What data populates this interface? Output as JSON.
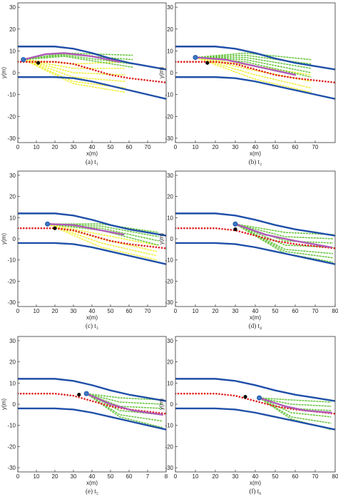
{
  "chart_data": [
    {
      "type": "line",
      "caption": "(a)  t₁",
      "xlabel": "x(m)",
      "ylabel": "y(m)",
      "xlim": [
        0,
        80
      ],
      "ylim": [
        -32,
        32
      ],
      "xticks": [
        0,
        10,
        20,
        30,
        40,
        50,
        60,
        70
      ],
      "yticks": [
        -30,
        -20,
        -10,
        0,
        10,
        20,
        30
      ],
      "series": [
        {
          "color": "#1f4fa8",
          "x": [
            0,
            10,
            20,
            30,
            40,
            50,
            60,
            70,
            80
          ],
          "values": [
            12,
            12,
            12,
            11,
            9,
            6.5,
            4.5,
            3,
            1.5
          ]
        },
        {
          "color": "#1f4fa8",
          "x": [
            0,
            10,
            20,
            30,
            40,
            50,
            60,
            70,
            80
          ],
          "values": [
            -2,
            -2,
            -2,
            -2.5,
            -4,
            -6,
            -8,
            -10,
            -12
          ]
        },
        {
          "color": "#e02020",
          "style": "dotted",
          "x": [
            0,
            10,
            20,
            30,
            40,
            50,
            60,
            70,
            80
          ],
          "values": [
            5,
            5,
            5,
            4,
            1.5,
            -1,
            -2.5,
            -3.5,
            -4.5
          ]
        },
        {
          "color": "#b05ab8",
          "x": [
            3,
            15,
            25,
            40,
            55
          ],
          "values": [
            6,
            8.5,
            9,
            7.5,
            5
          ]
        }
      ],
      "fans": [
        {
          "color": "#f0f040",
          "x": [
            3,
            30,
            58
          ],
          "lines": [
            [
              6,
              4,
              5
            ],
            [
              6,
              2,
              2
            ],
            [
              6,
              0,
              -1
            ],
            [
              6,
              -2,
              -4
            ],
            [
              6,
              -4,
              -7
            ],
            [
              6,
              -5,
              -9
            ]
          ]
        },
        {
          "color": "#6cc644",
          "x": [
            3,
            25,
            62
          ],
          "lines": [
            [
              6,
              9,
              8
            ],
            [
              6,
              8.5,
              6
            ],
            [
              6,
              8,
              4
            ],
            [
              6,
              7.5,
              2.5
            ]
          ]
        }
      ],
      "vehicle": [
        3,
        6
      ],
      "obstacle": [
        11,
        4.5
      ]
    },
    {
      "type": "line",
      "caption": "(b)  t₂",
      "xlabel": "x(m)",
      "ylabel": "y(m)",
      "xlim": [
        0,
        80
      ],
      "ylim": [
        -32,
        32
      ],
      "xticks": [
        0,
        10,
        20,
        30,
        40,
        50,
        60,
        70
      ],
      "yticks": [
        -30,
        -20,
        -10,
        0,
        10,
        20,
        30
      ],
      "series": [
        {
          "color": "#1f4fa8",
          "x": [
            0,
            10,
            20,
            30,
            40,
            50,
            60,
            70,
            80
          ],
          "values": [
            12,
            12,
            12,
            11,
            9,
            6.5,
            4.5,
            3,
            1.5
          ]
        },
        {
          "color": "#1f4fa8",
          "x": [
            0,
            10,
            20,
            30,
            40,
            50,
            60,
            70,
            80
          ],
          "values": [
            -2,
            -2,
            -2,
            -2.5,
            -4,
            -6,
            -8,
            -10,
            -12
          ]
        },
        {
          "color": "#e02020",
          "style": "dotted",
          "x": [
            0,
            10,
            20,
            30,
            40,
            50,
            60,
            70,
            80
          ],
          "values": [
            5,
            5,
            5,
            4,
            1.5,
            -1,
            -2.5,
            -3.5,
            -4.5
          ]
        },
        {
          "color": "#b05ab8",
          "x": [
            10,
            25,
            40,
            60
          ],
          "values": [
            7,
            6,
            3,
            -1
          ]
        }
      ],
      "fans": [
        {
          "color": "#f0f040",
          "x": [
            10,
            40,
            68
          ],
          "lines": [
            [
              7,
              3,
              -1
            ],
            [
              7,
              1,
              -4
            ],
            [
              7,
              -1,
              -7
            ],
            [
              7,
              -3,
              -9
            ]
          ]
        },
        {
          "color": "#6cc644",
          "x": [
            10,
            35,
            68
          ],
          "lines": [
            [
              7,
              9,
              6
            ],
            [
              7,
              8,
              4
            ],
            [
              7,
              7,
              2
            ],
            [
              7,
              6,
              0
            ],
            [
              7,
              5,
              -2
            ]
          ]
        }
      ],
      "vehicle": [
        10,
        7
      ],
      "obstacle": [
        16,
        4.5
      ]
    },
    {
      "type": "line",
      "caption": "(c)  t₃",
      "xlabel": "x(m)",
      "ylabel": "y(m)",
      "xlim": [
        0,
        80
      ],
      "ylim": [
        -32,
        32
      ],
      "xticks": [
        0,
        10,
        20,
        30,
        40,
        50,
        60,
        70
      ],
      "yticks": [
        -30,
        -20,
        -10,
        0,
        10,
        20,
        30
      ],
      "series": [
        {
          "color": "#1f4fa8",
          "x": [
            0,
            10,
            20,
            30,
            40,
            50,
            60,
            70,
            80
          ],
          "values": [
            12,
            12,
            12,
            11,
            9,
            6.5,
            4.5,
            3,
            1.5
          ]
        },
        {
          "color": "#1f4fa8",
          "x": [
            0,
            10,
            20,
            30,
            40,
            50,
            60,
            70,
            80
          ],
          "values": [
            -2,
            -2,
            -2,
            -2.5,
            -4,
            -6,
            -8,
            -10,
            -12
          ]
        },
        {
          "color": "#e02020",
          "style": "dotted",
          "x": [
            0,
            10,
            20,
            30,
            40,
            50,
            60,
            70,
            80
          ],
          "values": [
            5,
            5,
            5,
            4,
            1.5,
            -1,
            -2.5,
            -3.5,
            -4.5
          ]
        },
        {
          "color": "#b05ab8",
          "x": [
            16,
            30,
            45,
            57
          ],
          "values": [
            7,
            6.5,
            4,
            2
          ]
        }
      ],
      "fans": [
        {
          "color": "#f0f040",
          "x": [
            16,
            45,
            75
          ],
          "lines": [
            [
              7,
              2,
              -3
            ],
            [
              7,
              0,
              -6
            ],
            [
              7,
              -2,
              -8
            ],
            [
              7,
              -4,
              -10
            ]
          ]
        },
        {
          "color": "#6cc644",
          "x": [
            16,
            45,
            76
          ],
          "lines": [
            [
              7,
              7,
              3
            ],
            [
              7,
              6,
              1
            ],
            [
              7,
              5,
              -1
            ],
            [
              7,
              4,
              -3
            ]
          ]
        }
      ],
      "vehicle": [
        16,
        7
      ],
      "obstacle": [
        20,
        5
      ]
    },
    {
      "type": "line",
      "caption": "(d)  t₄",
      "xlabel": "x(m)",
      "ylabel": "y(m)",
      "xlim": [
        0,
        80
      ],
      "ylim": [
        -32,
        32
      ],
      "xticks": [
        0,
        10,
        20,
        30,
        40,
        50,
        60,
        70,
        80
      ],
      "yticks": [
        -30,
        -20,
        -10,
        0,
        10,
        20,
        30
      ],
      "series": [
        {
          "color": "#1f4fa8",
          "x": [
            0,
            10,
            20,
            30,
            40,
            50,
            60,
            70,
            80
          ],
          "values": [
            12,
            12,
            12,
            11,
            9,
            6.5,
            4.5,
            3,
            1.5
          ]
        },
        {
          "color": "#1f4fa8",
          "x": [
            0,
            10,
            20,
            30,
            40,
            50,
            60,
            70,
            80
          ],
          "values": [
            -2,
            -2,
            -2,
            -2.5,
            -4,
            -6,
            -8,
            -10,
            -12
          ]
        },
        {
          "color": "#e02020",
          "style": "dotted",
          "x": [
            0,
            10,
            20,
            30,
            40,
            50,
            60,
            70,
            80
          ],
          "values": [
            5,
            5,
            5,
            4,
            1.5,
            -1,
            -2.5,
            -3.5,
            -4.5
          ]
        },
        {
          "color": "#b05ab8",
          "x": [
            30,
            45,
            60,
            78
          ],
          "values": [
            7,
            2,
            -1,
            -4
          ]
        }
      ],
      "fans": [
        {
          "color": "#6cc644",
          "x": [
            30,
            55,
            79
          ],
          "lines": [
            [
              7,
              3,
              2
            ],
            [
              7,
              1,
              0
            ],
            [
              7,
              -1,
              -2
            ],
            [
              7,
              -3,
              -4
            ],
            [
              7,
              -5,
              -7
            ],
            [
              7,
              -6,
              -9
            ],
            [
              7,
              -7,
              -11
            ]
          ]
        }
      ],
      "vehicle": [
        30,
        7
      ],
      "obstacle": [
        30,
        4.5
      ]
    },
    {
      "type": "line",
      "caption": "(e)  t₅",
      "xlabel": "x(m)",
      "ylabel": "y(m)",
      "xlim": [
        0,
        80
      ],
      "ylim": [
        -32,
        32
      ],
      "xticks": [
        0,
        10,
        20,
        30,
        40,
        50,
        60,
        {
          "value": 70,
          "label": "7"
        },
        {
          "value": 80,
          "label": "8"
        }
      ],
      "yticks": [
        -30,
        -20,
        -10,
        0,
        10,
        20,
        30
      ],
      "series": [
        {
          "color": "#1f4fa8",
          "x": [
            0,
            10,
            20,
            30,
            40,
            50,
            60,
            70,
            80
          ],
          "values": [
            12,
            12,
            12,
            11,
            9,
            6.5,
            4.5,
            3,
            1.5
          ]
        },
        {
          "color": "#1f4fa8",
          "x": [
            0,
            10,
            20,
            30,
            40,
            50,
            60,
            70,
            80
          ],
          "values": [
            -2,
            -2,
            -2,
            -2.5,
            -4,
            -6,
            -8,
            -10,
            -12
          ]
        },
        {
          "color": "#e02020",
          "style": "dotted",
          "x": [
            0,
            10,
            20,
            30,
            40,
            50,
            60,
            70,
            80
          ],
          "values": [
            5,
            5,
            5,
            4,
            1.5,
            -1,
            -2.5,
            -3.5,
            -4.5
          ]
        },
        {
          "color": "#b05ab8",
          "x": [
            37,
            50,
            62,
            78
          ],
          "values": [
            5,
            0,
            -3,
            -5
          ]
        }
      ],
      "fans": [
        {
          "color": "#6cc644",
          "x": [
            37,
            55,
            78
          ],
          "lines": [
            [
              5,
              3,
              2
            ],
            [
              5,
              1,
              0
            ],
            [
              5,
              -1,
              -2
            ],
            [
              5,
              -3,
              -5
            ],
            [
              5,
              -5,
              -8
            ],
            [
              5,
              -6,
              -11
            ]
          ]
        }
      ],
      "vehicle": [
        37,
        5
      ],
      "obstacle": [
        33,
        4.5
      ]
    },
    {
      "type": "line",
      "caption": "(f)  t₆",
      "xlabel": "x(m)",
      "ylabel": "y(m)",
      "xlim": [
        0,
        80
      ],
      "ylim": [
        -32,
        32
      ],
      "xticks": [
        0,
        10,
        20,
        30,
        40,
        50,
        60,
        70,
        80
      ],
      "yticks": [
        -30,
        -20,
        -10,
        0,
        10,
        20,
        30
      ],
      "series": [
        {
          "color": "#1f4fa8",
          "x": [
            0,
            10,
            20,
            30,
            40,
            50,
            60,
            70,
            80
          ],
          "values": [
            12,
            12,
            12,
            11,
            9,
            6.5,
            4.5,
            3,
            1.5
          ]
        },
        {
          "color": "#1f4fa8",
          "x": [
            0,
            10,
            20,
            30,
            40,
            50,
            60,
            70,
            80
          ],
          "values": [
            -2,
            -2,
            -2,
            -2.5,
            -4,
            -6,
            -8,
            -10,
            -12
          ]
        },
        {
          "color": "#e02020",
          "style": "dotted",
          "x": [
            0,
            10,
            20,
            30,
            40,
            50,
            60,
            70,
            80
          ],
          "values": [
            5,
            5,
            5,
            4,
            1.5,
            -1,
            -2.5,
            -3.5,
            -4.5
          ]
        },
        {
          "color": "#b05ab8",
          "x": [
            42,
            55,
            65,
            78
          ],
          "values": [
            3,
            -1,
            -3,
            -4
          ]
        }
      ],
      "fans": [
        {
          "color": "#6cc644",
          "x": [
            42,
            58,
            78
          ],
          "lines": [
            [
              3,
              2,
              1
            ],
            [
              3,
              0,
              -1
            ],
            [
              3,
              -2,
              -3
            ],
            [
              3,
              -4,
              -6
            ],
            [
              3,
              -6,
              -9
            ],
            [
              3,
              -7,
              -12
            ]
          ]
        }
      ],
      "vehicle": [
        42,
        3
      ],
      "obstacle": [
        35,
        3.5
      ]
    }
  ]
}
